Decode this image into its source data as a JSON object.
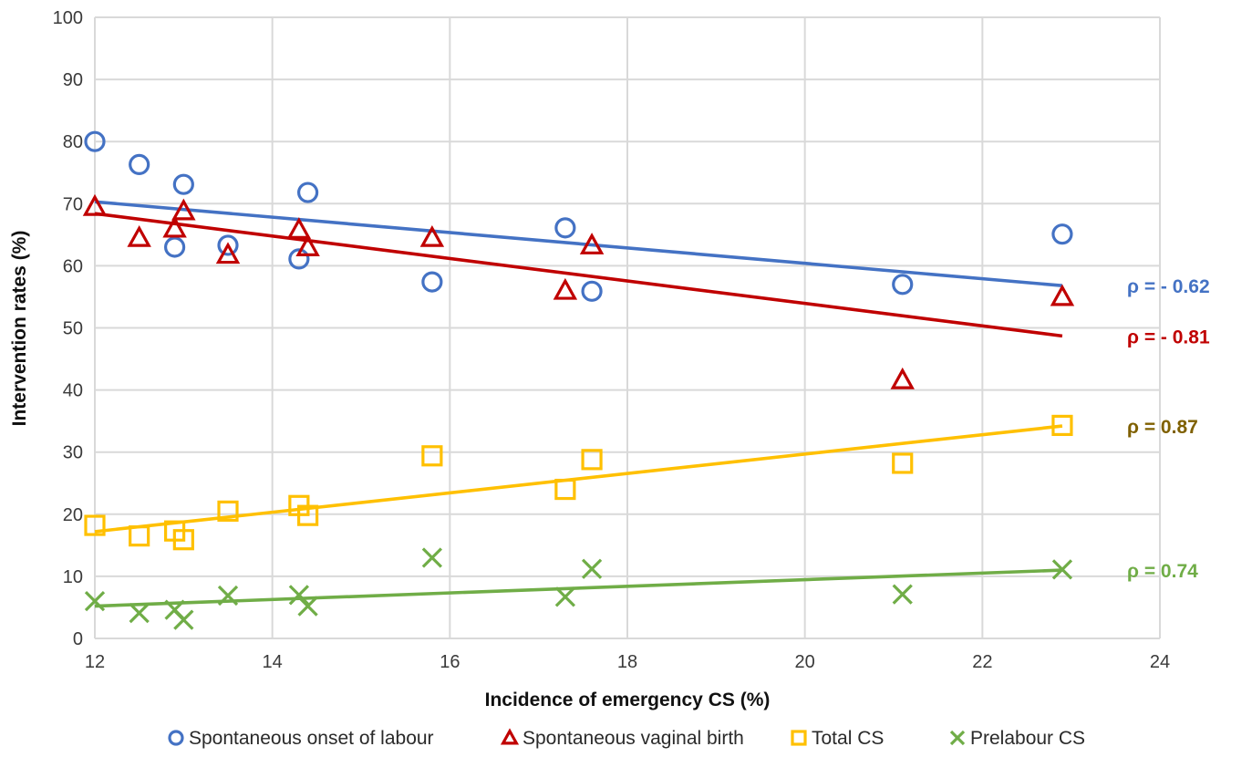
{
  "chart_data": {
    "type": "scatter",
    "xlabel": "Incidence of emergency CS (%)",
    "ylabel": "Intervention rates (%)",
    "xlim": [
      12,
      24
    ],
    "ylim": [
      0,
      100
    ],
    "x_ticks": [
      "12",
      "14",
      "16",
      "18",
      "20",
      "22",
      "24"
    ],
    "y_ticks": [
      "0",
      "10",
      "20",
      "30",
      "40",
      "50",
      "60",
      "70",
      "80",
      "90",
      "100"
    ],
    "grid": true,
    "legend_position": "bottom",
    "series": [
      {
        "name": "Spontaneous onset of labour",
        "marker": "circle",
        "color": "#4472C4",
        "points": [
          [
            12.0,
            80.0
          ],
          [
            12.5,
            76.3
          ],
          [
            12.9,
            63.0
          ],
          [
            13.0,
            73.1
          ],
          [
            13.5,
            63.3
          ],
          [
            14.3,
            61.1
          ],
          [
            14.4,
            71.8
          ],
          [
            15.8,
            57.4
          ],
          [
            17.3,
            66.1
          ],
          [
            17.6,
            55.9
          ],
          [
            21.1,
            57.0
          ],
          [
            22.9,
            65.1
          ]
        ],
        "trend": [
          [
            12.0,
            70.3
          ],
          [
            22.9,
            56.8
          ]
        ],
        "rho_label": "ρ = - 0.62"
      },
      {
        "name": "Spontaneous vaginal birth",
        "marker": "triangle",
        "color": "#C00000",
        "points": [
          [
            12.0,
            69.5
          ],
          [
            12.5,
            64.5
          ],
          [
            12.9,
            66.0
          ],
          [
            13.0,
            68.8
          ],
          [
            13.5,
            61.8
          ],
          [
            14.3,
            65.8
          ],
          [
            14.4,
            63.0
          ],
          [
            15.8,
            64.5
          ],
          [
            17.3,
            56.0
          ],
          [
            17.6,
            63.3
          ],
          [
            21.1,
            41.6
          ],
          [
            22.9,
            55.0
          ]
        ],
        "trend": [
          [
            12.0,
            68.4
          ],
          [
            22.9,
            48.7
          ]
        ],
        "rho_label": "ρ = - 0.81"
      },
      {
        "name": "Total CS",
        "marker": "square",
        "color": "#FFC000",
        "points": [
          [
            12.0,
            18.2
          ],
          [
            12.5,
            16.5
          ],
          [
            12.9,
            17.3
          ],
          [
            13.0,
            15.9
          ],
          [
            13.5,
            20.5
          ],
          [
            14.3,
            21.4
          ],
          [
            14.4,
            19.8
          ],
          [
            15.8,
            29.4
          ],
          [
            17.3,
            24.0
          ],
          [
            17.6,
            28.8
          ],
          [
            21.1,
            28.2
          ],
          [
            22.9,
            34.3
          ]
        ],
        "trend": [
          [
            12.0,
            17.2
          ],
          [
            22.9,
            34.2
          ]
        ],
        "rho_label": "ρ = 0.87",
        "rho_color": "#7F6000"
      },
      {
        "name": "Prelabour CS",
        "marker": "x",
        "color": "#70AD47",
        "points": [
          [
            12.0,
            6.0
          ],
          [
            12.5,
            4.1
          ],
          [
            12.9,
            4.6
          ],
          [
            13.0,
            3.0
          ],
          [
            13.5,
            6.9
          ],
          [
            14.3,
            7.0
          ],
          [
            14.4,
            5.2
          ],
          [
            15.8,
            13.0
          ],
          [
            17.3,
            6.7
          ],
          [
            17.6,
            11.2
          ],
          [
            21.1,
            7.1
          ],
          [
            22.9,
            11.1
          ]
        ],
        "trend": [
          [
            12.0,
            5.2
          ],
          [
            22.9,
            11.0
          ]
        ],
        "rho_label": "ρ = 0.74"
      }
    ]
  }
}
